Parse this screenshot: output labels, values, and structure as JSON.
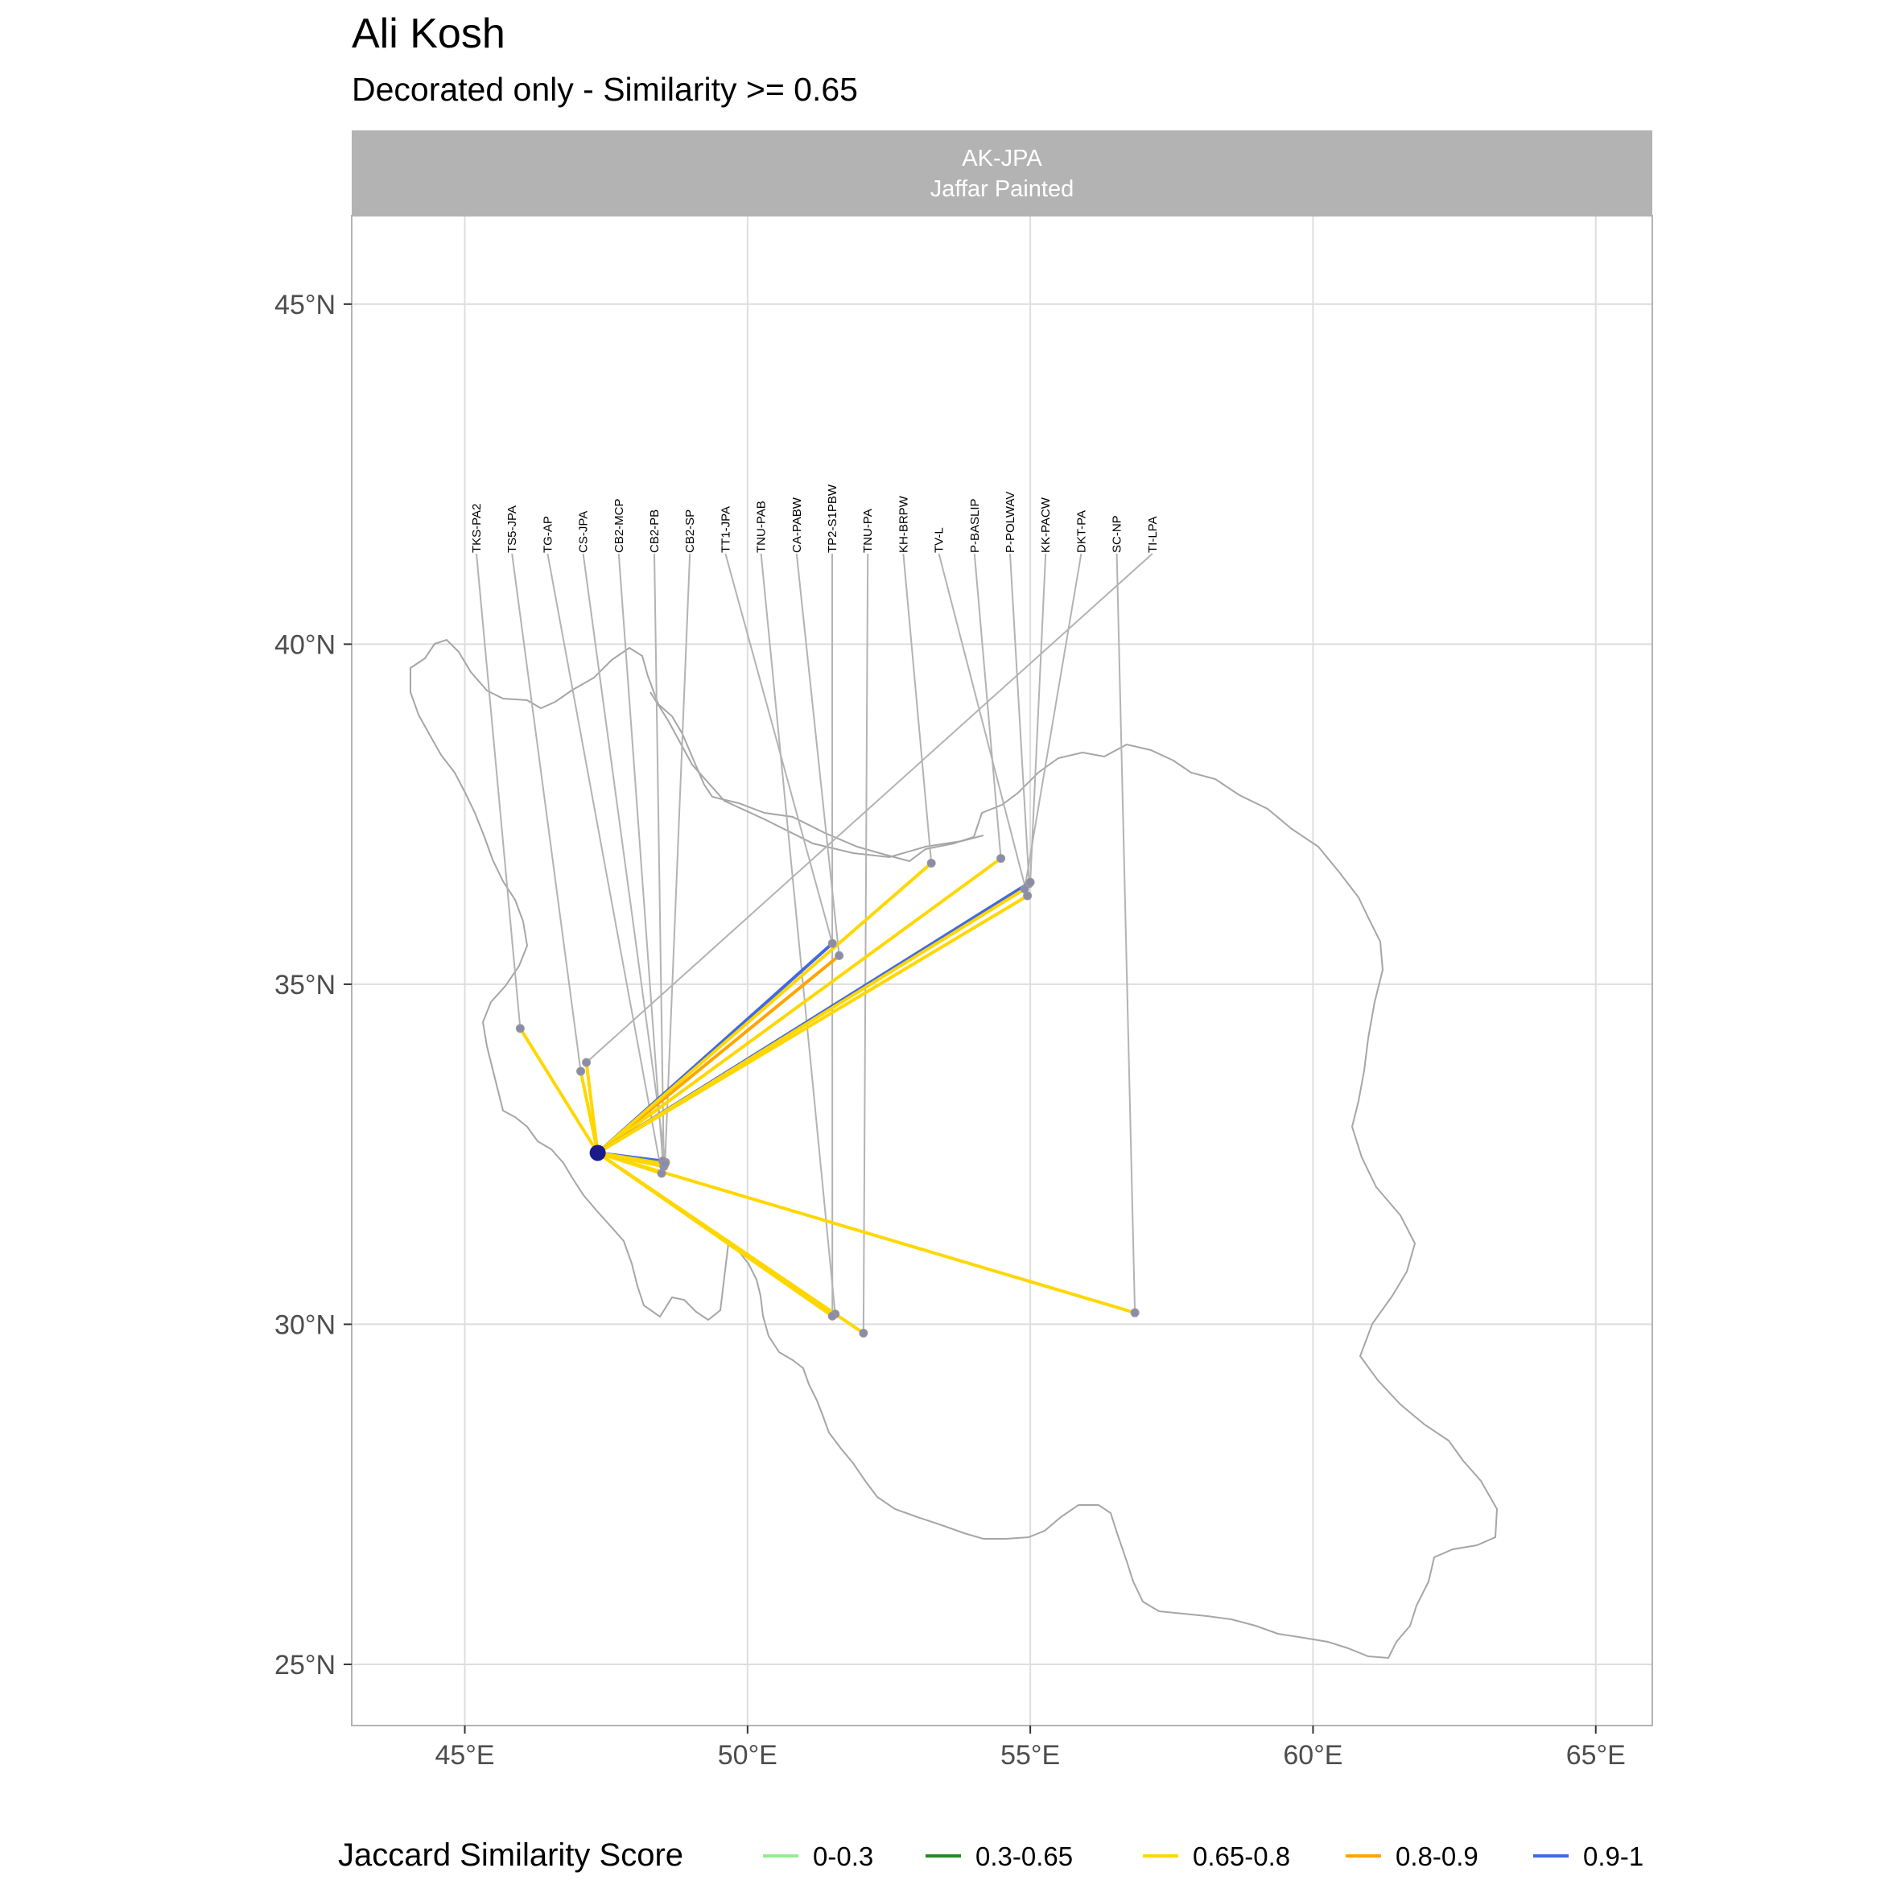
{
  "title": "Ali Kosh",
  "subtitle": "Decorated only - Similarity >= 0.65",
  "facet": {
    "line1": "AK-JPA",
    "line2": "Jaffar Painted"
  },
  "axes": {
    "x_ticks": [
      {
        "value": 45,
        "label": "45°E"
      },
      {
        "value": 50,
        "label": "50°E"
      },
      {
        "value": 55,
        "label": "55°E"
      },
      {
        "value": 60,
        "label": "60°E"
      },
      {
        "value": 65,
        "label": "65°E"
      }
    ],
    "y_ticks": [
      {
        "value": 25,
        "label": "25°N"
      },
      {
        "value": 30,
        "label": "30°N"
      },
      {
        "value": 35,
        "label": "35°N"
      },
      {
        "value": 40,
        "label": "40°N"
      },
      {
        "value": 45,
        "label": "45°N"
      }
    ]
  },
  "legend": {
    "title": "Jaccard Similarity Score",
    "position": "bottom",
    "items": [
      {
        "label": "0-0.3",
        "color": "#90ee90"
      },
      {
        "label": "0.3-0.65",
        "color": "#228b22"
      },
      {
        "label": "0.65-0.8",
        "color": "#ffd700"
      },
      {
        "label": "0.8-0.9",
        "color": "#ffa500"
      },
      {
        "label": "0.9-1",
        "color": "#4169e1"
      }
    ]
  },
  "chart_data": {
    "type": "map",
    "facet": "AK-JPA",
    "xlim": [
      43,
      66
    ],
    "ylim": [
      24.1,
      46.3
    ],
    "grid": true,
    "origin": {
      "lon": 47.35,
      "lat": 32.52,
      "color": "#1a1a8c"
    },
    "sites": [
      {
        "label": "TKS-PA2",
        "lon": 45.98,
        "lat": 34.35,
        "score": "0.65-0.8"
      },
      {
        "label": "TS5-JPA",
        "lon": 47.05,
        "lat": 33.72,
        "score": "0.65-0.8"
      },
      {
        "label": "TG-AP",
        "lon": 48.48,
        "lat": 32.22,
        "score": "0.65-0.8"
      },
      {
        "label": "CS-JPA",
        "lon": 48.55,
        "lat": 32.38,
        "score": "0.9-1"
      },
      {
        "label": "CB2-MCP",
        "lon": 48.5,
        "lat": 32.4,
        "score": "0.9-1"
      },
      {
        "label": "CB2-PB",
        "lon": 48.52,
        "lat": 32.32,
        "score": "0.65-0.8"
      },
      {
        "label": "CB2-SP",
        "lon": 48.54,
        "lat": 32.36,
        "score": "0.65-0.8"
      },
      {
        "label": "TT1-JPA",
        "lon": 51.5,
        "lat": 35.6,
        "score": "0.9-1"
      },
      {
        "label": "TNU-PAB",
        "lon": 51.55,
        "lat": 30.15,
        "score": "0.65-0.8"
      },
      {
        "label": "CA-PABW",
        "lon": 51.62,
        "lat": 35.42,
        "score": "0.8-0.9"
      },
      {
        "label": "TP2-S1PBW",
        "lon": 51.5,
        "lat": 30.12,
        "score": "0.65-0.8"
      },
      {
        "label": "TNU-PA",
        "lon": 52.05,
        "lat": 29.87,
        "score": "0.65-0.8"
      },
      {
        "label": "KH-BRPW",
        "lon": 53.25,
        "lat": 36.78,
        "score": "0.65-0.8"
      },
      {
        "label": "TV-L",
        "lon": 54.95,
        "lat": 36.3,
        "score": "0.65-0.8"
      },
      {
        "label": "P-BASLIP",
        "lon": 54.48,
        "lat": 36.85,
        "score": "0.65-0.8"
      },
      {
        "label": "P-POLWAV",
        "lon": 54.98,
        "lat": 36.48,
        "score": "0.8-0.9"
      },
      {
        "label": "KK-PACW",
        "lon": 55.0,
        "lat": 36.5,
        "score": "0.9-1"
      },
      {
        "label": "DKT-PA",
        "lon": 54.9,
        "lat": 36.4,
        "score": "0.65-0.8"
      },
      {
        "label": "SC-NP",
        "lon": 56.85,
        "lat": 30.17,
        "score": "0.65-0.8"
      },
      {
        "label": "TI-LPA",
        "lon": 47.15,
        "lat": 33.85,
        "score": "0.65-0.8"
      }
    ]
  }
}
